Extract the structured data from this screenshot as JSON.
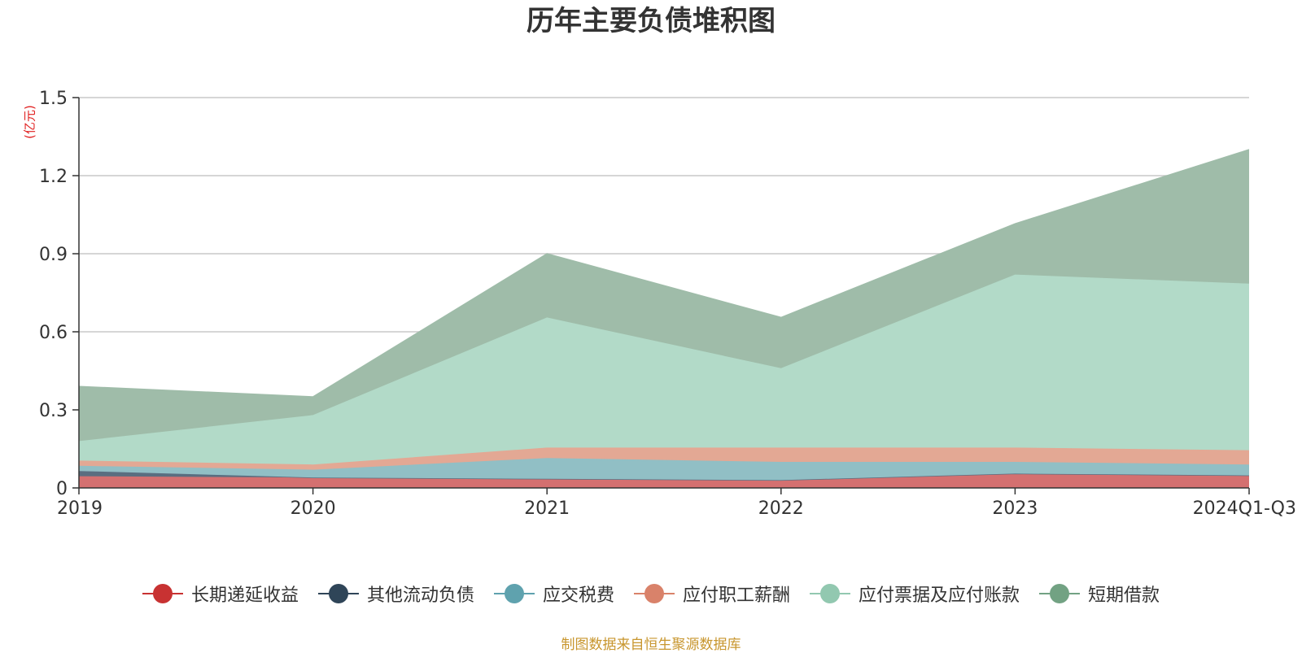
{
  "header": {
    "title": "历年主要负债堆积图",
    "unit": "(亿元)"
  },
  "footer": {
    "source": "制图数据来自恒生聚源数据库"
  },
  "chart_data": {
    "type": "area",
    "stacked": true,
    "title": "历年主要负债堆积图",
    "ylabel": "(亿元)",
    "ylim": [
      0,
      1.5
    ],
    "yticks": [
      "0",
      "0.3",
      "0.6",
      "0.9",
      "1.2",
      "1.5"
    ],
    "grid": true,
    "legend_position": "bottom",
    "categories": [
      "2019",
      "2020",
      "2021",
      "2022",
      "2023",
      "2024Q1-Q3"
    ],
    "series": [
      {
        "name": "长期递延收益",
        "color": "#c83232",
        "fill": "#d47070",
        "values": [
          0.045,
          0.04,
          0.035,
          0.03,
          0.055,
          0.048
        ]
      },
      {
        "name": "其他流动负债",
        "color": "#2f4558",
        "fill": "#5a6e80",
        "values": [
          0.02,
          0.0,
          0.0,
          0.0,
          0.0,
          0.0
        ]
      },
      {
        "name": "应交税费",
        "color": "#5fa2ae",
        "fill": "#91bfc5",
        "values": [
          0.02,
          0.03,
          0.08,
          0.07,
          0.045,
          0.042
        ]
      },
      {
        "name": "应付职工薪酬",
        "color": "#d9826a",
        "fill": "#e3a894",
        "values": [
          0.02,
          0.02,
          0.04,
          0.055,
          0.055,
          0.055
        ]
      },
      {
        "name": "应付票据及应付账款",
        "color": "#92c8b0",
        "fill": "#b2dac8",
        "values": [
          0.075,
          0.19,
          0.5,
          0.305,
          0.665,
          0.64
        ]
      },
      {
        "name": "短期借款",
        "color": "#72a283",
        "fill": "#9fbca9",
        "values": [
          0.21,
          0.07,
          0.245,
          0.195,
          0.195,
          0.515
        ]
      }
    ]
  }
}
